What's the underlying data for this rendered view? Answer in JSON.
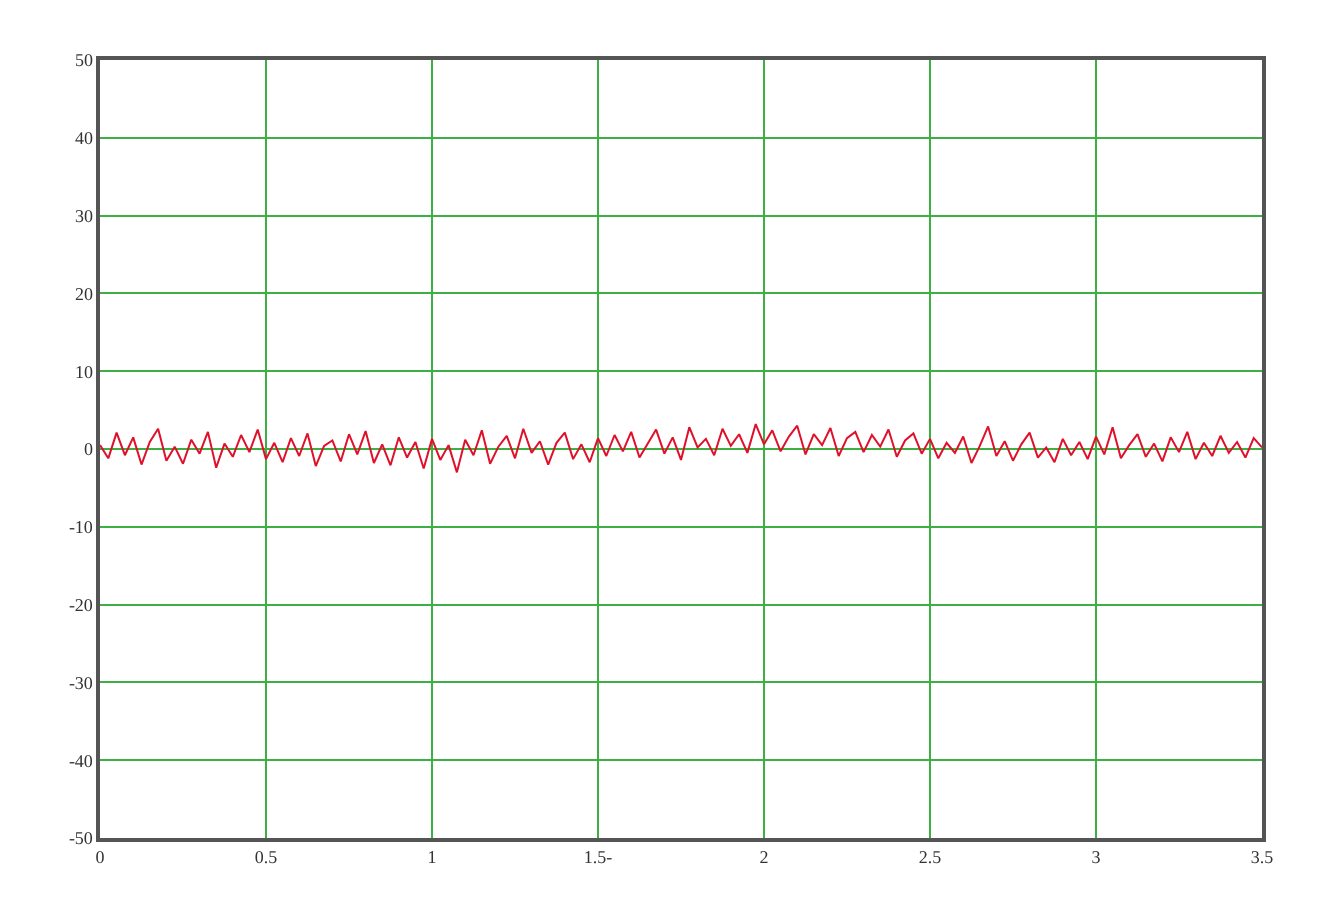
{
  "chart_data": {
    "type": "line",
    "grid": true,
    "marker": "none",
    "line_style": "solid",
    "xlim": [
      0,
      3.5
    ],
    "xticks": [
      0,
      0.5,
      1,
      {
        "value": 1.5,
        "label": "1.5-"
      },
      2,
      2.5,
      3,
      3.5
    ],
    "ylim": [
      -50,
      50
    ],
    "yticks": [
      -50,
      -40,
      -30,
      -20,
      -10,
      0,
      10,
      20,
      30,
      40,
      50
    ],
    "x": [
      0,
      0.025,
      0.05,
      0.075,
      0.1,
      0.125,
      0.15,
      0.175,
      0.2,
      0.225,
      0.25,
      0.275,
      0.3,
      0.325,
      0.35,
      0.375,
      0.4,
      0.425,
      0.45,
      0.475,
      0.5,
      0.525,
      0.55,
      0.575,
      0.6,
      0.625,
      0.65,
      0.675,
      0.7,
      0.725,
      0.75,
      0.775,
      0.8,
      0.825,
      0.85,
      0.875,
      0.9,
      0.925,
      0.95,
      0.975,
      1,
      1.025,
      1.05,
      1.075,
      1.1,
      1.125,
      1.15,
      1.175,
      1.2,
      1.225,
      1.25,
      1.275,
      1.3,
      1.325,
      1.35,
      1.375,
      1.4,
      1.425,
      1.45,
      1.475,
      1.5,
      1.525,
      1.55,
      1.575,
      1.6,
      1.625,
      1.65,
      1.675,
      1.7,
      1.725,
      1.75,
      1.775,
      1.8,
      1.825,
      1.85,
      1.875,
      1.9,
      1.925,
      1.95,
      1.975,
      2,
      2.025,
      2.05,
      2.075,
      2.1,
      2.125,
      2.15,
      2.175,
      2.2,
      2.225,
      2.25,
      2.275,
      2.3,
      2.325,
      2.35,
      2.375,
      2.4,
      2.425,
      2.45,
      2.475,
      2.5,
      2.525,
      2.55,
      2.575,
      2.6,
      2.625,
      2.65,
      2.675,
      2.7,
      2.725,
      2.75,
      2.775,
      2.8,
      2.825,
      2.85,
      2.875,
      2.9,
      2.925,
      2.95,
      2.975,
      3,
      3.025,
      3.05,
      3.075,
      3.1,
      3.125,
      3.15,
      3.175,
      3.2,
      3.225,
      3.25,
      3.275,
      3.3,
      3.325,
      3.35,
      3.375,
      3.4,
      3.425,
      3.45,
      3.475,
      3.5
    ],
    "series": [
      {
        "color": "#e0102a",
        "values": [
          0.5,
          -1.2,
          2.1,
          -0.8,
          1.5,
          -2.0,
          0.9,
          2.6,
          -1.5,
          0.3,
          -1.9,
          1.2,
          -0.6,
          2.2,
          -2.4,
          0.7,
          -1.0,
          1.8,
          -0.4,
          2.5,
          -1.3,
          0.8,
          -1.7,
          1.4,
          -0.9,
          2.0,
          -2.2,
          0.4,
          1.1,
          -1.6,
          1.9,
          -0.7,
          2.3,
          -1.8,
          0.6,
          -2.1,
          1.5,
          -1.1,
          0.9,
          -2.5,
          1.3,
          -1.4,
          0.5,
          -3.0,
          1.2,
          -0.8,
          2.4,
          -1.9,
          0.3,
          1.7,
          -1.2,
          2.6,
          -0.5,
          1.0,
          -2.0,
          0.8,
          2.1,
          -1.3,
          0.6,
          -1.7,
          1.4,
          -0.9,
          1.8,
          -0.3,
          2.2,
          -1.1,
          0.7,
          2.5,
          -0.6,
          1.5,
          -1.4,
          2.8,
          0.2,
          1.3,
          -0.8,
          2.6,
          0.4,
          1.9,
          -0.5,
          3.2,
          0.6,
          2.4,
          -0.3,
          1.6,
          3.0,
          -0.7,
          1.9,
          0.5,
          2.7,
          -0.9,
          1.4,
          2.2,
          -0.4,
          1.8,
          0.3,
          2.5,
          -1.0,
          1.1,
          2.0,
          -0.6,
          1.3,
          -1.2,
          0.8,
          -0.5,
          1.6,
          -1.8,
          0.4,
          2.9,
          -0.9,
          1.0,
          -1.5,
          0.6,
          2.1,
          -1.1,
          0.2,
          -1.7,
          1.3,
          -0.8,
          0.9,
          -1.3,
          1.6,
          -0.7,
          2.8,
          -1.2,
          0.5,
          1.9,
          -1.0,
          0.7,
          -1.6,
          1.5,
          -0.4,
          2.2,
          -1.3,
          0.8,
          -0.9,
          1.7,
          -0.5,
          0.9,
          -1.1,
          1.4,
          0.2
        ]
      }
    ]
  }
}
